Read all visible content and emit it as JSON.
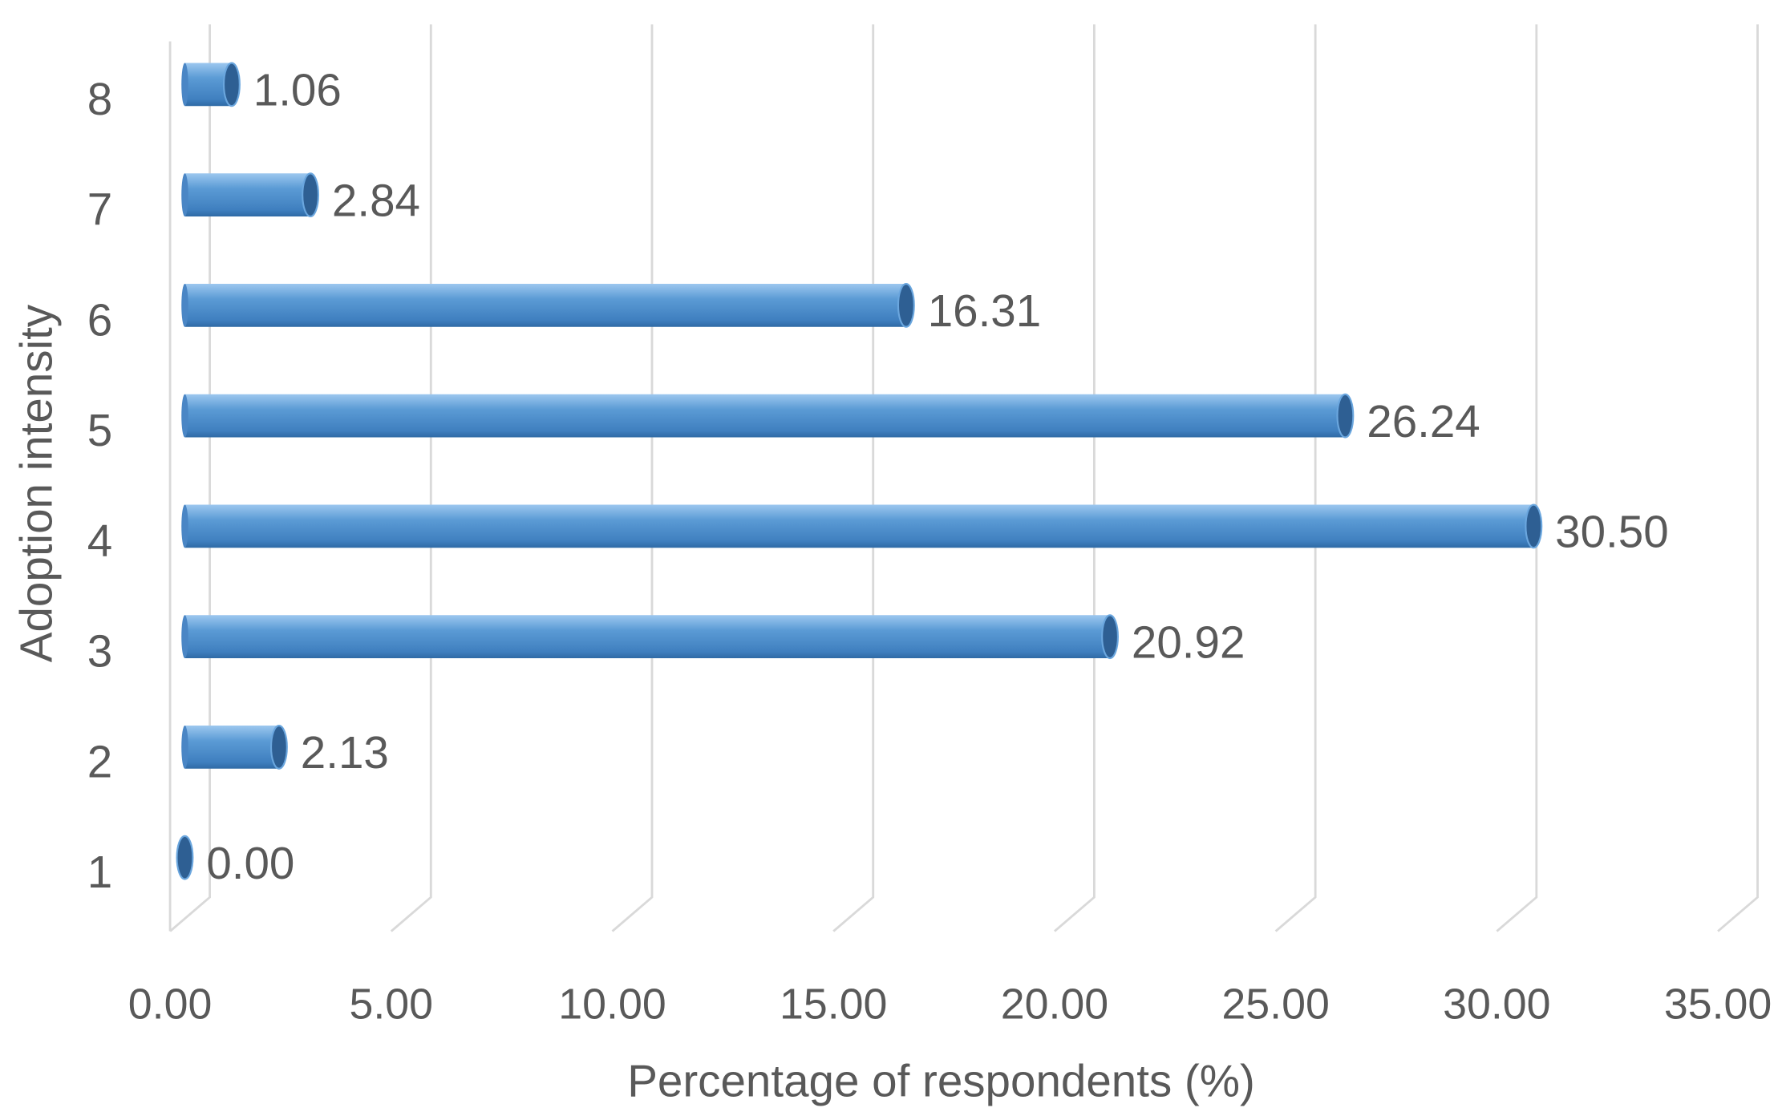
{
  "chart_data": {
    "type": "bar",
    "orientation": "horizontal",
    "x_label": "Percentage of respondents (%)",
    "y_label": "Adoption intensity",
    "categories": [
      "1",
      "2",
      "3",
      "4",
      "5",
      "6",
      "7",
      "8"
    ],
    "values": [
      0,
      2.13,
      20.92,
      30.5,
      26.24,
      16.31,
      2.84,
      1.06
    ],
    "value_labels": [
      "0.00",
      "2.13",
      "20.92",
      "30.50",
      "26.24",
      "16.31",
      "2.84",
      "1.06"
    ],
    "color": "#5b9bd5",
    "xlim": [
      0,
      35
    ],
    "xticks": [
      {
        "value": 0,
        "label": "0.00"
      },
      {
        "value": 5,
        "label": "5.00"
      },
      {
        "value": 10,
        "label": "10.00"
      },
      {
        "value": 15,
        "label": "15.00"
      },
      {
        "value": 20,
        "label": "20.00"
      },
      {
        "value": 25,
        "label": "25.00"
      },
      {
        "value": 30,
        "label": "30.00"
      },
      {
        "value": 35,
        "label": "35.00"
      }
    ],
    "grid": true
  }
}
